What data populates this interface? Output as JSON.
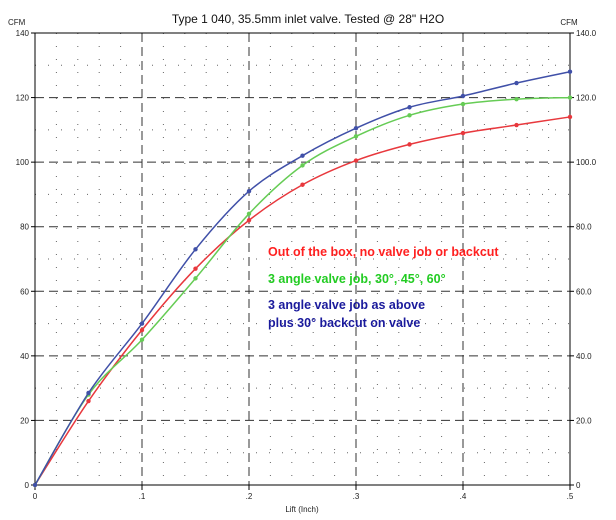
{
  "chart_data": {
    "type": "line",
    "title": "Type 1 040, 35.5mm inlet valve. Tested @ 28\" H2O",
    "xlabel": "Lift (Inch)",
    "ylabel_left": "CFM",
    "ylabel_right": "CFM",
    "xlim": [
      0,
      0.5
    ],
    "ylim": [
      0,
      140
    ],
    "x_major_ticks": [
      0,
      0.1,
      0.2,
      0.3,
      0.4,
      0.5
    ],
    "x_tick_labels": [
      "0",
      ".1",
      ".2",
      ".3",
      ".4",
      ".5"
    ],
    "y_ticks": [
      0,
      20,
      40,
      60,
      80,
      100,
      120,
      140
    ],
    "y_tick_labels_left": [
      "0",
      "20",
      "40",
      "60",
      "80",
      "100",
      "120",
      "140"
    ],
    "y_tick_labels_right": [
      "0",
      "20.0",
      "40.0",
      "60.0",
      "80.0",
      "100.0",
      "120.0",
      "140.0"
    ],
    "grid": true,
    "legend_placement": "inside center-right",
    "annotations": [
      {
        "text": "Out of the box, no valve job or backcut",
        "color": "#ff2020"
      },
      {
        "text": "3 angle valve job, 30°, 45°, 60°",
        "color": "#22cc22"
      },
      {
        "text": "3 angle valve job as above",
        "color": "#1a1a9c"
      },
      {
        "text": "plus 30° backcut on valve",
        "color": "#1a1a9c"
      }
    ],
    "series": [
      {
        "color": "#e8383d",
        "x": [
          0,
          0.05,
          0.1,
          0.15,
          0.2,
          0.25,
          0.3,
          0.35,
          0.4,
          0.45,
          0.5
        ],
        "y": [
          0,
          26,
          48,
          67,
          82,
          93,
          100.5,
          105.5,
          109,
          111.5,
          114
        ]
      },
      {
        "color": "#66cc55",
        "x": [
          0,
          0.05,
          0.1,
          0.15,
          0.2,
          0.25,
          0.3,
          0.35,
          0.4,
          0.45,
          0.5
        ],
        "y": [
          0,
          28,
          45,
          64,
          84,
          99,
          108,
          114.5,
          118,
          119.5,
          120
        ]
      },
      {
        "color": "#4050a8",
        "x": [
          0,
          0.05,
          0.1,
          0.15,
          0.2,
          0.25,
          0.3,
          0.35,
          0.4,
          0.45,
          0.5
        ],
        "y": [
          0,
          28.5,
          50,
          73,
          91,
          102,
          110.5,
          117,
          120.5,
          124.5,
          128
        ]
      }
    ]
  }
}
